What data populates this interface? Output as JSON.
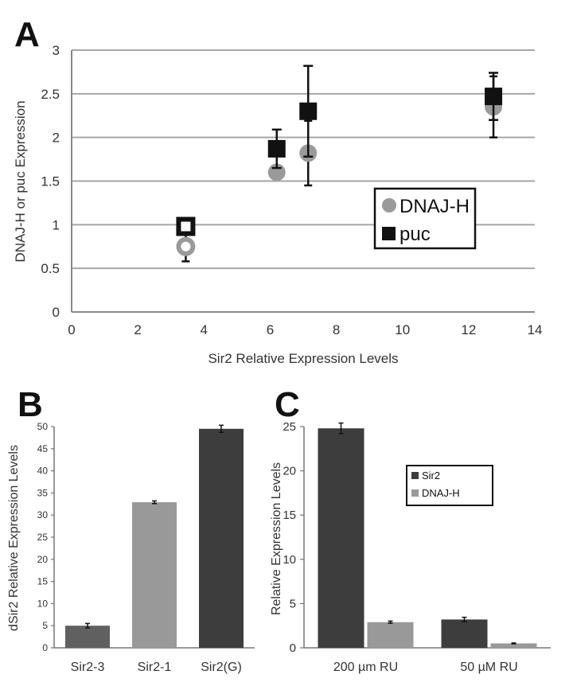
{
  "colors": {
    "grid": "#a6a6a6",
    "axis": "#888888",
    "text": "#333333",
    "black": "#111111",
    "gray_marker": "#9a9a9a",
    "bar_dark": "#3d3d3d",
    "bar_mid": "#606060",
    "bar_light": "#999999"
  },
  "chart_data": [
    {
      "panel": "A",
      "type": "scatter",
      "title": "",
      "xlabel": "Sir2 Relative Expression Levels",
      "ylabel": "DNAJ-H or puc Expression",
      "xlim": [
        0,
        14
      ],
      "ylim": [
        0,
        3
      ],
      "xticks": [
        "0",
        "2",
        "4",
        "6",
        "8",
        "10",
        "12",
        "14"
      ],
      "yticks": [
        "0",
        "0.5",
        "1",
        "1.5",
        "2",
        "2.5",
        "3"
      ],
      "grid": true,
      "legend_position": "middle-right",
      "series": [
        {
          "name": "DNAJ-H",
          "marker": "circle",
          "points": [
            {
              "x": 3.45,
              "y": 0.75,
              "err": 0.17,
              "hollow": true
            },
            {
              "x": 6.2,
              "y": 1.6,
              "err": 0.0,
              "hollow": false
            },
            {
              "x": 7.15,
              "y": 1.82,
              "err": 0.37,
              "hollow": false
            },
            {
              "x": 12.75,
              "y": 2.35,
              "err": 0.35,
              "hollow": false
            }
          ]
        },
        {
          "name": "puc",
          "marker": "square",
          "points": [
            {
              "x": 3.45,
              "y": 0.98,
              "err": 0.0,
              "hollow": true
            },
            {
              "x": 6.2,
              "y": 1.87,
              "err": 0.22,
              "hollow": false
            },
            {
              "x": 7.15,
              "y": 2.3,
              "err": 0.52,
              "hollow": false
            },
            {
              "x": 12.75,
              "y": 2.47,
              "err": 0.27,
              "hollow": false
            }
          ]
        }
      ]
    },
    {
      "panel": "B",
      "type": "bar",
      "title": "",
      "xlabel": "",
      "ylabel": "dSir2 Relative Expression Levels",
      "ylim": [
        0,
        50
      ],
      "yticks": [
        "0",
        "5",
        "10",
        "15",
        "20",
        "25",
        "30",
        "35",
        "40",
        "45",
        "50"
      ],
      "grid": false,
      "categories": [
        "Sir2-3",
        "Sir2-1",
        "Sir2(G)"
      ],
      "values": [
        5.0,
        32.9,
        49.5
      ],
      "errors": [
        0.5,
        0.3,
        0.8
      ]
    },
    {
      "panel": "C",
      "type": "bar",
      "title": "",
      "xlabel": "",
      "ylabel": "Relative Expression Levels",
      "ylim": [
        0,
        25
      ],
      "yticks": [
        "0",
        "5",
        "10",
        "15",
        "20",
        "25"
      ],
      "grid": false,
      "legend_position": "upper-right",
      "categories": [
        "200 µm RU",
        "50 µM RU"
      ],
      "series": [
        {
          "name": "Sir2",
          "values": [
            24.8,
            3.2
          ],
          "errors": [
            0.6,
            0.25
          ]
        },
        {
          "name": "DNAJ-H",
          "values": [
            2.9,
            0.5
          ],
          "errors": [
            0.12,
            0.05
          ]
        }
      ]
    }
  ]
}
